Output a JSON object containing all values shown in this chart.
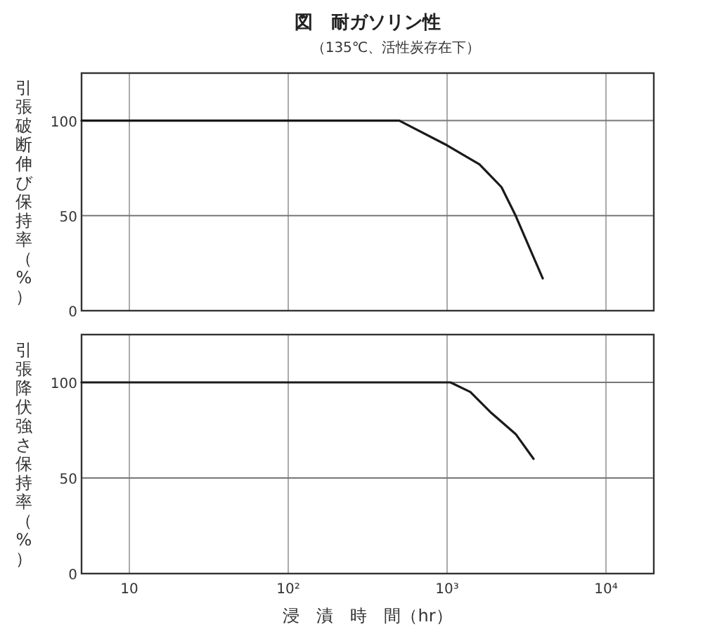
{
  "chart_data": [
    {
      "type": "line",
      "title": "図　耐ガソリン性",
      "subtitle": "（135℃、活性炭存在下）",
      "ylabel": "引張破断伸び保持率（%）",
      "log": "x",
      "grid": true,
      "tick_labels": "y",
      "xlim": [
        5,
        20000
      ],
      "ylim": [
        0,
        125
      ],
      "xticks": [
        {
          "value": 10,
          "label": null
        },
        {
          "value": 100,
          "label": null
        },
        {
          "value": 1000,
          "label": null
        },
        {
          "value": 10000,
          "label": null
        }
      ],
      "yticks": [
        0,
        50,
        100
      ],
      "series": [
        {
          "color": "#1a1a1a",
          "x": [
            5,
            500,
            1000,
            1600,
            2200,
            2700,
            4000
          ],
          "values": [
            100,
            100,
            87,
            77,
            65,
            50,
            17
          ]
        }
      ]
    },
    {
      "type": "line",
      "xlabel": "浸　漬　時　間（hr）",
      "ylabel": "引張降伏強さ保持率（%）",
      "log": "x",
      "grid": true,
      "xlim": [
        5,
        20000
      ],
      "ylim": [
        0,
        125
      ],
      "xticks": [
        10,
        {
          "value": 100,
          "label": "10²"
        },
        {
          "value": 1000,
          "label": "10³"
        },
        {
          "value": 10000,
          "label": "10⁴"
        }
      ],
      "yticks": [
        0,
        50,
        100
      ],
      "series": [
        {
          "color": "#1a1a1a",
          "x": [
            5,
            1050,
            1400,
            1900,
            2700,
            3500
          ],
          "values": [
            100,
            100,
            95,
            84,
            73,
            60
          ]
        }
      ]
    }
  ]
}
